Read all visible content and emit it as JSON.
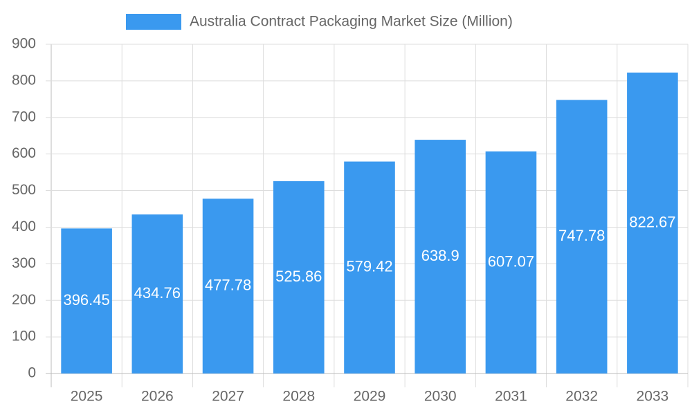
{
  "chart_data": {
    "type": "bar",
    "categories": [
      "2025",
      "2026",
      "2027",
      "2028",
      "2029",
      "2030",
      "2031",
      "2032",
      "2033"
    ],
    "series": [
      {
        "name": "Australia Contract Packaging Market Size (Million)",
        "color": "#3a99ef",
        "values": [
          396.45,
          434.76,
          477.78,
          525.86,
          579.42,
          638.9,
          607.07,
          747.78,
          822.67
        ]
      }
    ],
    "ylim": [
      0,
      900
    ],
    "yticks": [
      0,
      100,
      200,
      300,
      400,
      500,
      600,
      700,
      800,
      900
    ],
    "grid": true,
    "legend": "top"
  }
}
